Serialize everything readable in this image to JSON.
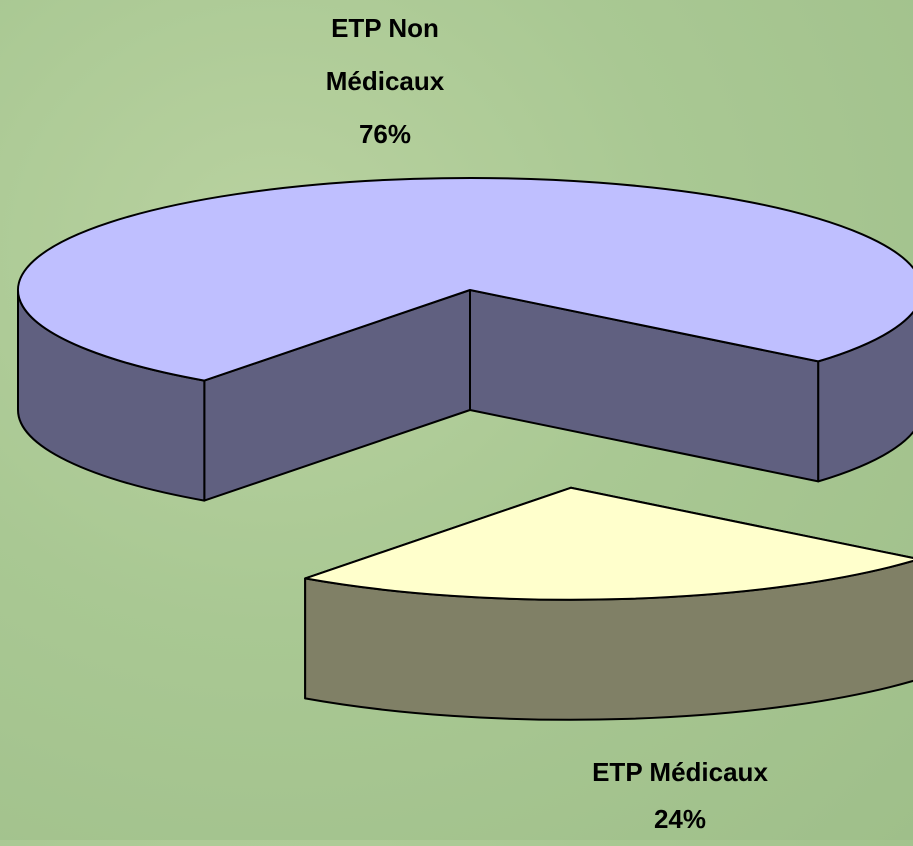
{
  "chart_data": {
    "type": "pie3d",
    "categories": [
      "ETP Non Médicaux",
      "ETP Médicaux"
    ],
    "values": [
      76,
      24
    ],
    "value_labels": [
      "76%",
      "24%"
    ],
    "colors": [
      "#bfbfff",
      "#ffffcc"
    ]
  }
}
